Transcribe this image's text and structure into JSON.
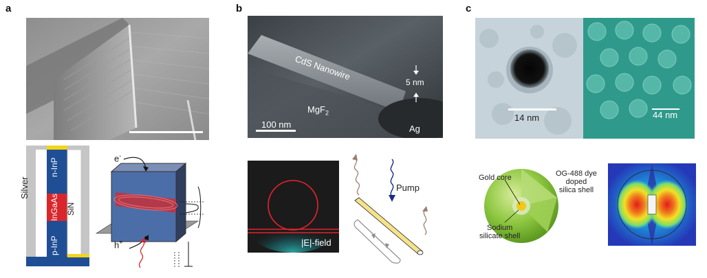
{
  "panels": {
    "a": {
      "letter": "a",
      "stack_labels": {
        "silver": "Silver",
        "n_inp": "n-InP",
        "ingaas": "InGaAs",
        "p_inp": "p-InP",
        "sin": "SiN"
      },
      "schematic": {
        "electron": "e",
        "hole": "h",
        "electron_sup": "-",
        "hole_sup": "+"
      }
    },
    "b": {
      "letter": "b",
      "micrograph_labels": {
        "nanowire": "CdS Nanowire",
        "gap": "5 nm",
        "mgf2_base": "MgF",
        "mgf2_sub": "2",
        "ag": "Ag",
        "scale": "100 nm"
      },
      "field_label": "|E|-field",
      "pump_label": "Pump"
    },
    "c": {
      "letter": "c",
      "tem_scale": "14 nm",
      "sem_scale": "44 nm",
      "labels": {
        "gold_core": "Gold core",
        "dye_shell_line1": "OG-488 dye",
        "dye_shell_line2": "doped",
        "dye_shell_line3": "silica shell",
        "sodium_line1": "Sodium",
        "sodium_line2": "silicate shell"
      }
    }
  },
  "colors": {
    "sem_gray": "#9a9a9a",
    "sem_dark": "#4b4f52",
    "tem_light": "#c9d6dc",
    "sem_teal": "#2e9a8c",
    "gain_red": "#d8262c",
    "gold": "#f2c81b",
    "inp_blue": "#1f4e94",
    "silver_gray": "#bdbdbd",
    "pump_blue": "#1c2a8a",
    "sphere_green": "#8cc63f"
  }
}
